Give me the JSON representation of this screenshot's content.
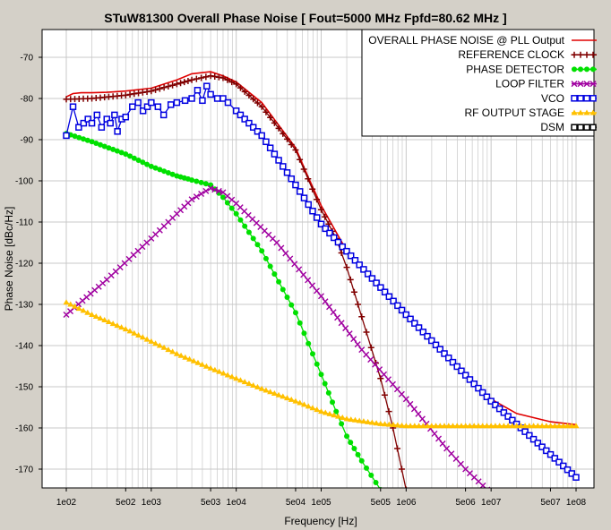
{
  "chart_data": {
    "type": "line",
    "title": "STuW81300 Overall Phase Noise  [ Fout=5000 MHz  Fpfd=80.62 MHz ]",
    "xlabel": "Frequency [Hz]",
    "ylabel": "Phase Noise [dBc/Hz]",
    "xscale": "log",
    "xlim": [
      100,
      100000000
    ],
    "ylim": [
      -175,
      -65
    ],
    "grid": true,
    "legend_position": "top-right",
    "x_ticks": [
      {
        "value": 100,
        "label": "1e02"
      },
      {
        "value": 500,
        "label": "5e02"
      },
      {
        "value": 1000,
        "label": "1e03"
      },
      {
        "value": 5000,
        "label": "5e03"
      },
      {
        "value": 10000,
        "label": "1e04"
      },
      {
        "value": 50000,
        "label": "5e04"
      },
      {
        "value": 100000,
        "label": "1e05"
      },
      {
        "value": 500000,
        "label": "5e05"
      },
      {
        "value": 1000000,
        "label": "1e06"
      },
      {
        "value": 5000000,
        "label": "5e06"
      },
      {
        "value": 10000000,
        "label": "1e07"
      },
      {
        "value": 50000000,
        "label": "5e07"
      },
      {
        "value": 100000000,
        "label": "1e08"
      }
    ],
    "y_ticks": [
      -70,
      -80,
      -90,
      -100,
      -110,
      -120,
      -130,
      -140,
      -150,
      -160,
      -170
    ],
    "series": [
      {
        "name": "OVERALL PHASE NOISE @ PLL Output",
        "color": "#e00000",
        "marker": "none",
        "points": [
          [
            100,
            -79.6
          ],
          [
            120,
            -78.8
          ],
          [
            150,
            -78.6
          ],
          [
            200,
            -78.6
          ],
          [
            300,
            -78.5
          ],
          [
            500,
            -78.2
          ],
          [
            1000,
            -77.5
          ],
          [
            2000,
            -75.5
          ],
          [
            3000,
            -74
          ],
          [
            5000,
            -73.5
          ],
          [
            7000,
            -74.5
          ],
          [
            10000,
            -76
          ],
          [
            20000,
            -81
          ],
          [
            50000,
            -92
          ],
          [
            70000,
            -99
          ],
          [
            100000,
            -106
          ],
          [
            200000,
            -117
          ],
          [
            500000,
            -126
          ],
          [
            1000000,
            -132.5
          ],
          [
            2000000,
            -139
          ],
          [
            5000000,
            -147.5
          ],
          [
            10000000,
            -153
          ],
          [
            20000000,
            -156.5
          ],
          [
            50000000,
            -158.5
          ],
          [
            100000000,
            -159.2
          ]
        ]
      },
      {
        "name": "REFERENCE CLOCK",
        "color": "#800000",
        "marker": "plus",
        "points": [
          [
            100,
            -80.2
          ],
          [
            200,
            -80
          ],
          [
            500,
            -79.2
          ],
          [
            1000,
            -78.2
          ],
          [
            2000,
            -76.5
          ],
          [
            3000,
            -75.5
          ],
          [
            5000,
            -74.5
          ],
          [
            7000,
            -75
          ],
          [
            10000,
            -76.5
          ],
          [
            20000,
            -82
          ],
          [
            50000,
            -92.5
          ],
          [
            70000,
            -99.5
          ],
          [
            100000,
            -107
          ],
          [
            150000,
            -114
          ],
          [
            200000,
            -121
          ],
          [
            300000,
            -133
          ],
          [
            500000,
            -148
          ],
          [
            700000,
            -160
          ],
          [
            1000000,
            -175
          ]
        ]
      },
      {
        "name": "PHASE DETECTOR",
        "color": "#00e000",
        "marker": "circle",
        "points": [
          [
            100,
            -88.5
          ],
          [
            200,
            -90.5
          ],
          [
            500,
            -93.5
          ],
          [
            1000,
            -96.5
          ],
          [
            2000,
            -98.8
          ],
          [
            3000,
            -99.8
          ],
          [
            5000,
            -101
          ],
          [
            7000,
            -104
          ],
          [
            10000,
            -108
          ],
          [
            20000,
            -117
          ],
          [
            50000,
            -132
          ],
          [
            100000,
            -147
          ],
          [
            150000,
            -156
          ],
          [
            200000,
            -162
          ],
          [
            300000,
            -168
          ],
          [
            500000,
            -175
          ]
        ]
      },
      {
        "name": "LOOP FILTER",
        "color": "#a000a0",
        "marker": "x",
        "points": [
          [
            100,
            -132.5
          ],
          [
            300,
            -124
          ],
          [
            1000,
            -114
          ],
          [
            2000,
            -108
          ],
          [
            3000,
            -104.5
          ],
          [
            5000,
            -101.8
          ],
          [
            7000,
            -102.8
          ],
          [
            10000,
            -105.5
          ],
          [
            30000,
            -115
          ],
          [
            100000,
            -128
          ],
          [
            300000,
            -141
          ],
          [
            1000000,
            -153
          ],
          [
            3000000,
            -165
          ],
          [
            5000000,
            -170
          ],
          [
            9000000,
            -175
          ]
        ]
      },
      {
        "name": "VCO",
        "color": "#0000e0",
        "marker": "square",
        "points": [
          [
            100,
            -89
          ],
          [
            120,
            -82
          ],
          [
            140,
            -87
          ],
          [
            160,
            -86
          ],
          [
            180,
            -85
          ],
          [
            200,
            -86
          ],
          [
            230,
            -84
          ],
          [
            260,
            -87
          ],
          [
            300,
            -85
          ],
          [
            330,
            -86
          ],
          [
            370,
            -84
          ],
          [
            400,
            -88
          ],
          [
            450,
            -85
          ],
          [
            500,
            -84.5
          ],
          [
            600,
            -82
          ],
          [
            700,
            -81
          ],
          [
            800,
            -83
          ],
          [
            900,
            -82
          ],
          [
            1000,
            -81
          ],
          [
            1200,
            -82
          ],
          [
            1400,
            -84
          ],
          [
            1700,
            -81.5
          ],
          [
            2000,
            -81
          ],
          [
            2500,
            -80.5
          ],
          [
            3000,
            -80
          ],
          [
            3500,
            -78
          ],
          [
            4000,
            -80.5
          ],
          [
            4500,
            -77
          ],
          [
            5000,
            -79
          ],
          [
            6000,
            -80
          ],
          [
            7000,
            -80
          ],
          [
            8000,
            -81
          ],
          [
            10000,
            -83
          ],
          [
            20000,
            -89
          ],
          [
            50000,
            -101
          ],
          [
            100000,
            -110.5
          ],
          [
            1000000,
            -132.5
          ],
          [
            10000000,
            -153.5
          ],
          [
            100000000,
            -172
          ]
        ]
      },
      {
        "name": "RF OUTPUT STAGE",
        "color": "#ffc000",
        "marker": "triangle",
        "points": [
          [
            100,
            -129.5
          ],
          [
            200,
            -132.5
          ],
          [
            500,
            -136
          ],
          [
            1000,
            -139
          ],
          [
            2000,
            -142
          ],
          [
            5000,
            -145.5
          ],
          [
            10000,
            -148
          ],
          [
            20000,
            -150.5
          ],
          [
            50000,
            -153.5
          ],
          [
            100000,
            -156
          ],
          [
            200000,
            -157.8
          ],
          [
            500000,
            -159
          ],
          [
            1000000,
            -159.5
          ],
          [
            10000000,
            -159.5
          ],
          [
            100000000,
            -159.5
          ]
        ]
      },
      {
        "name": "DSM",
        "color": "#000000",
        "marker": "square",
        "points": []
      }
    ]
  }
}
